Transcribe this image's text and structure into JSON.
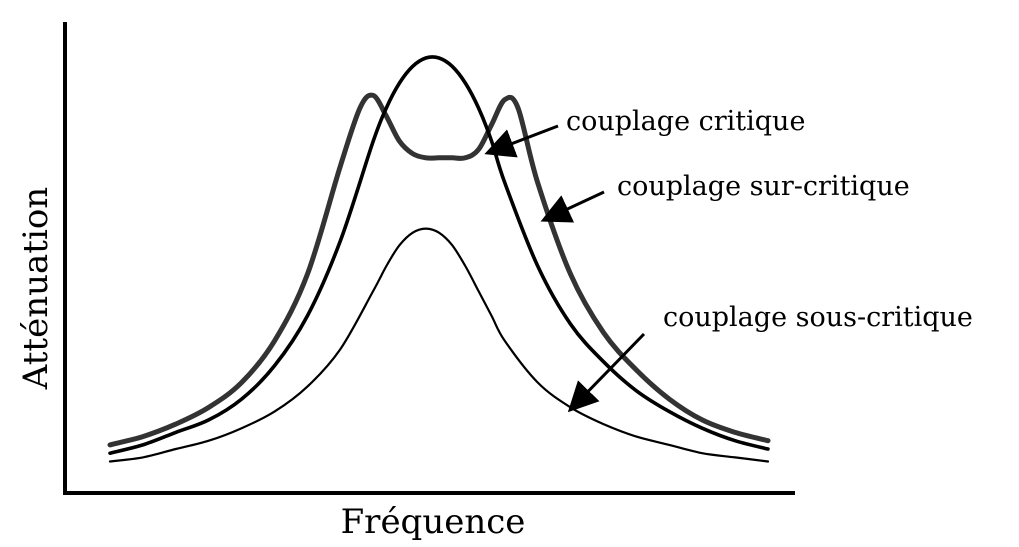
{
  "chart_data": {
    "type": "line",
    "title": "",
    "xlabel": "Fréquence",
    "ylabel": "Atténuation",
    "grid": false,
    "legend": "none",
    "series": [
      {
        "name": "couplage critique",
        "x": [
          0.0,
          0.05,
          0.1,
          0.15,
          0.2,
          0.25,
          0.3,
          0.35,
          0.4,
          0.42,
          0.44,
          0.46,
          0.48,
          0.5,
          0.52,
          0.54,
          0.56,
          0.58,
          0.6,
          0.65,
          0.7,
          0.75,
          0.8,
          0.85,
          0.9,
          0.95,
          1.0
        ],
        "y": [
          0.05,
          0.07,
          0.1,
          0.13,
          0.18,
          0.26,
          0.38,
          0.56,
          0.8,
          0.88,
          0.94,
          0.98,
          1.0,
          1.0,
          0.98,
          0.94,
          0.88,
          0.8,
          0.7,
          0.5,
          0.36,
          0.27,
          0.2,
          0.15,
          0.11,
          0.08,
          0.06
        ]
      },
      {
        "name": "couplage sur-critique",
        "x": [
          0.0,
          0.05,
          0.1,
          0.15,
          0.2,
          0.25,
          0.3,
          0.35,
          0.38,
          0.4,
          0.42,
          0.44,
          0.46,
          0.48,
          0.5,
          0.52,
          0.54,
          0.56,
          0.58,
          0.6,
          0.62,
          0.65,
          0.7,
          0.75,
          0.8,
          0.85,
          0.9,
          0.95,
          1.0
        ],
        "y": [
          0.07,
          0.09,
          0.12,
          0.16,
          0.22,
          0.32,
          0.48,
          0.74,
          0.88,
          0.91,
          0.86,
          0.8,
          0.77,
          0.76,
          0.76,
          0.76,
          0.76,
          0.78,
          0.84,
          0.9,
          0.88,
          0.7,
          0.48,
          0.34,
          0.25,
          0.18,
          0.13,
          0.1,
          0.08
        ]
      },
      {
        "name": "couplage sous-critique",
        "x": [
          0.0,
          0.05,
          0.1,
          0.15,
          0.2,
          0.25,
          0.3,
          0.35,
          0.4,
          0.42,
          0.44,
          0.46,
          0.48,
          0.5,
          0.52,
          0.54,
          0.56,
          0.58,
          0.6,
          0.65,
          0.7,
          0.75,
          0.8,
          0.85,
          0.9,
          0.95,
          1.0
        ],
        "y": [
          0.03,
          0.04,
          0.06,
          0.08,
          0.11,
          0.15,
          0.21,
          0.3,
          0.44,
          0.5,
          0.55,
          0.58,
          0.59,
          0.58,
          0.55,
          0.5,
          0.44,
          0.38,
          0.32,
          0.22,
          0.16,
          0.12,
          0.09,
          0.07,
          0.05,
          0.04,
          0.03
        ]
      }
    ],
    "annotations": [
      {
        "text": "couplage critique",
        "target": "couplage critique"
      },
      {
        "text": "couplage sur-critique",
        "target": "couplage sur-critique"
      },
      {
        "text": "couplage sous-critique",
        "target": "couplage sous-critique"
      }
    ]
  },
  "colors": {
    "line": "#000000",
    "background": "#ffffff"
  }
}
